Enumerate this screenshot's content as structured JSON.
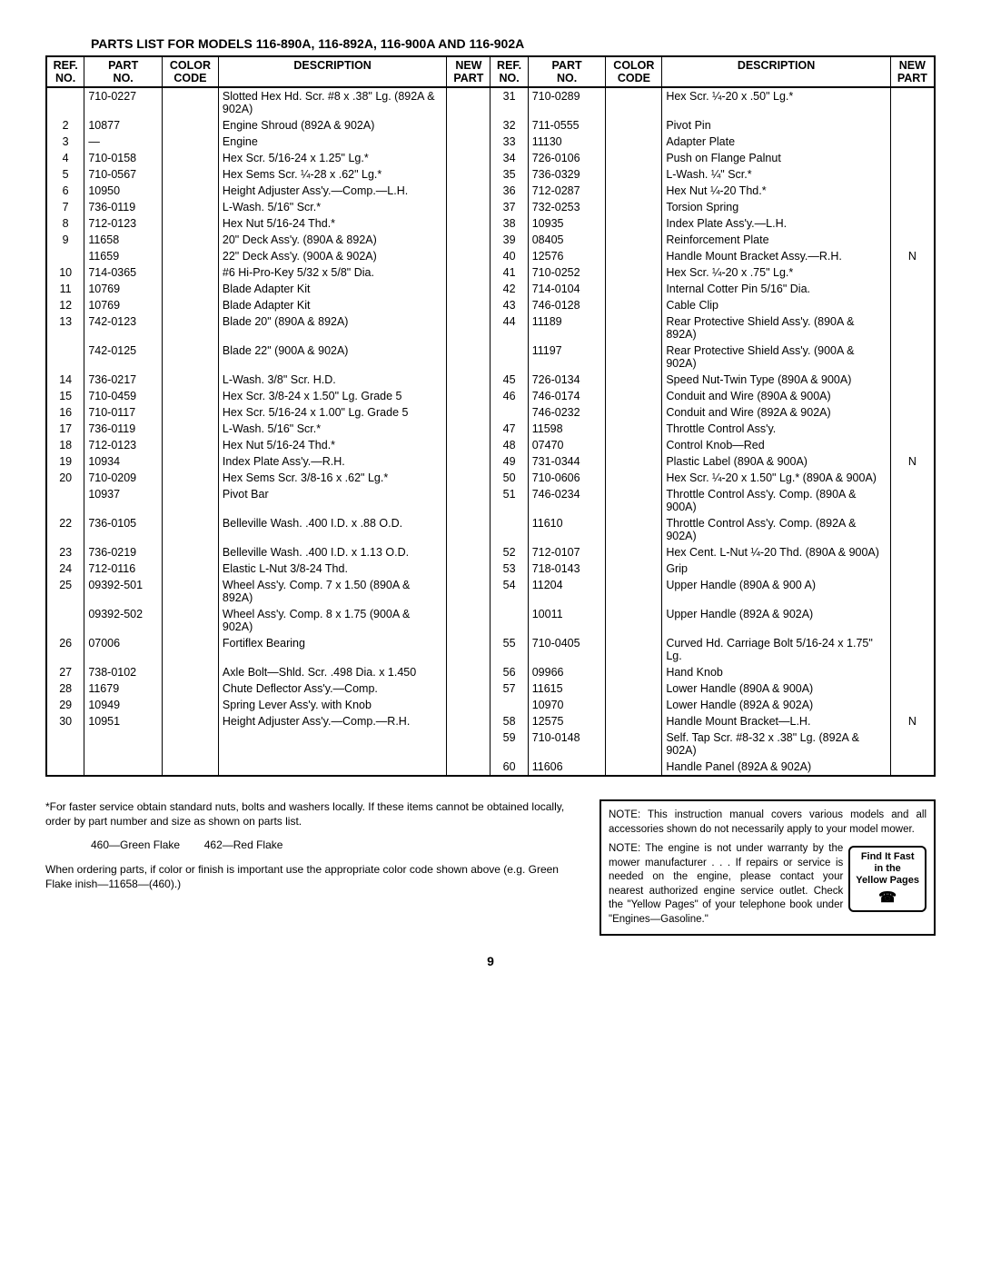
{
  "title": "PARTS LIST FOR MODELS 116-890A, 116-892A, 116-900A AND 116-902A",
  "headers": {
    "ref": "REF.\nNO.",
    "part": "PART\nNO.",
    "color": "COLOR\nCODE",
    "desc": "DESCRIPTION",
    "new": "NEW\nPART"
  },
  "left_rows": [
    {
      "ref": "",
      "part": "710-0227",
      "color": "",
      "desc": "Slotted Hex Hd. Scr. #8 x .38\" Lg. (892A & 902A)",
      "new": ""
    },
    {
      "ref": "2",
      "part": "10877",
      "color": "",
      "desc": "Engine Shroud (892A & 902A)",
      "new": ""
    },
    {
      "ref": "3",
      "part": "—",
      "color": "",
      "desc": "Engine",
      "new": ""
    },
    {
      "ref": "4",
      "part": "710-0158",
      "color": "",
      "desc": "Hex Scr. 5/16-24 x 1.25\" Lg.*",
      "new": ""
    },
    {
      "ref": "5",
      "part": "710-0567",
      "color": "",
      "desc": "Hex Sems Scr. ¼-28 x .62\" Lg.*",
      "new": ""
    },
    {
      "ref": "6",
      "part": "10950",
      "color": "",
      "desc": "Height Adjuster Ass'y.—Comp.—L.H.",
      "new": ""
    },
    {
      "ref": "7",
      "part": "736-0119",
      "color": "",
      "desc": "L-Wash. 5/16\" Scr.*",
      "new": ""
    },
    {
      "ref": "8",
      "part": "712-0123",
      "color": "",
      "desc": "Hex Nut 5/16-24 Thd.*",
      "new": ""
    },
    {
      "ref": "9",
      "part": "11658",
      "color": "",
      "desc": "20\" Deck Ass'y. (890A & 892A)",
      "new": ""
    },
    {
      "ref": "",
      "part": "11659",
      "color": "",
      "desc": "22\" Deck Ass'y. (900A & 902A)",
      "new": ""
    },
    {
      "ref": "10",
      "part": "714-0365",
      "color": "",
      "desc": "#6 Hi-Pro-Key 5/32 x 5/8\" Dia.",
      "new": ""
    },
    {
      "ref": "11",
      "part": "10769",
      "color": "",
      "desc": "Blade Adapter Kit",
      "new": ""
    },
    {
      "ref": "12",
      "part": "10769",
      "color": "",
      "desc": "Blade Adapter Kit",
      "new": ""
    },
    {
      "ref": "13",
      "part": "742-0123",
      "color": "",
      "desc": "Blade 20\" (890A & 892A)",
      "new": ""
    },
    {
      "ref": "",
      "part": "742-0125",
      "color": "",
      "desc": "Blade 22\" (900A & 902A)",
      "new": ""
    },
    {
      "ref": "14",
      "part": "736-0217",
      "color": "",
      "desc": "L-Wash. 3/8\" Scr. H.D.",
      "new": ""
    },
    {
      "ref": "15",
      "part": "710-0459",
      "color": "",
      "desc": "Hex Scr. 3/8-24 x 1.50\" Lg. Grade 5",
      "new": ""
    },
    {
      "ref": "16",
      "part": "710-0117",
      "color": "",
      "desc": "Hex Scr. 5/16-24 x 1.00\" Lg. Grade 5",
      "new": ""
    },
    {
      "ref": "17",
      "part": "736-0119",
      "color": "",
      "desc": "L-Wash. 5/16\" Scr.*",
      "new": ""
    },
    {
      "ref": "18",
      "part": "712-0123",
      "color": "",
      "desc": "Hex Nut 5/16-24 Thd.*",
      "new": ""
    },
    {
      "ref": "19",
      "part": "10934",
      "color": "",
      "desc": "Index Plate Ass'y.—R.H.",
      "new": ""
    },
    {
      "ref": "20",
      "part": "710-0209",
      "color": "",
      "desc": "Hex Sems Scr. 3/8-16 x .62\" Lg.*",
      "new": ""
    },
    {
      "ref": "",
      "part": "10937",
      "color": "",
      "desc": "Pivot Bar",
      "new": ""
    },
    {
      "ref": "22",
      "part": "736-0105",
      "color": "",
      "desc": "Belleville Wash. .400 I.D. x .88 O.D.",
      "new": ""
    },
    {
      "ref": "23",
      "part": "736-0219",
      "color": "",
      "desc": "Belleville Wash. .400 I.D. x 1.13 O.D.",
      "new": ""
    },
    {
      "ref": "24",
      "part": "712-0116",
      "color": "",
      "desc": "Elastic L-Nut 3/8-24 Thd.",
      "new": ""
    },
    {
      "ref": "25",
      "part": "09392-501",
      "color": "",
      "desc": "Wheel Ass'y. Comp. 7 x 1.50 (890A & 892A)",
      "new": ""
    },
    {
      "ref": "",
      "part": "09392-502",
      "color": "",
      "desc": "Wheel Ass'y. Comp. 8 x 1.75 (900A & 902A)",
      "new": ""
    },
    {
      "ref": "26",
      "part": "07006",
      "color": "",
      "desc": "Fortiflex Bearing",
      "new": ""
    },
    {
      "ref": "27",
      "part": "738-0102",
      "color": "",
      "desc": "Axle Bolt—Shld. Scr. .498 Dia. x 1.450",
      "new": ""
    },
    {
      "ref": "28",
      "part": "11679",
      "color": "",
      "desc": "Chute Deflector Ass'y.—Comp.",
      "new": ""
    },
    {
      "ref": "29",
      "part": "10949",
      "color": "",
      "desc": "Spring Lever Ass'y. with Knob",
      "new": ""
    },
    {
      "ref": "30",
      "part": "10951",
      "color": "",
      "desc": "Height Adjuster Ass'y.—Comp.—R.H.",
      "new": ""
    }
  ],
  "right_rows": [
    {
      "ref": "31",
      "part": "710-0289",
      "color": "",
      "desc": "Hex Scr. ¼-20 x .50\" Lg.*",
      "new": ""
    },
    {
      "ref": "32",
      "part": "711-0555",
      "color": "",
      "desc": "Pivot Pin",
      "new": ""
    },
    {
      "ref": "33",
      "part": "11130",
      "color": "",
      "desc": "Adapter Plate",
      "new": ""
    },
    {
      "ref": "34",
      "part": "726-0106",
      "color": "",
      "desc": "Push on Flange Palnut",
      "new": ""
    },
    {
      "ref": "35",
      "part": "736-0329",
      "color": "",
      "desc": "L-Wash. ¼\" Scr.*",
      "new": ""
    },
    {
      "ref": "36",
      "part": "712-0287",
      "color": "",
      "desc": "Hex Nut ¼-20 Thd.*",
      "new": ""
    },
    {
      "ref": "37",
      "part": "732-0253",
      "color": "",
      "desc": "Torsion Spring",
      "new": ""
    },
    {
      "ref": "38",
      "part": "10935",
      "color": "",
      "desc": "Index Plate Ass'y.—L.H.",
      "new": ""
    },
    {
      "ref": "39",
      "part": "08405",
      "color": "",
      "desc": "Reinforcement Plate",
      "new": ""
    },
    {
      "ref": "40",
      "part": "12576",
      "color": "",
      "desc": "Handle Mount Bracket Assy.—R.H.",
      "new": "N"
    },
    {
      "ref": "41",
      "part": "710-0252",
      "color": "",
      "desc": "Hex Scr. ¼-20 x .75\" Lg.*",
      "new": ""
    },
    {
      "ref": "42",
      "part": "714-0104",
      "color": "",
      "desc": "Internal Cotter Pin 5/16\" Dia.",
      "new": ""
    },
    {
      "ref": "43",
      "part": "746-0128",
      "color": "",
      "desc": "Cable Clip",
      "new": ""
    },
    {
      "ref": "44",
      "part": "11189",
      "color": "",
      "desc": "Rear Protective Shield Ass'y. (890A & 892A)",
      "new": ""
    },
    {
      "ref": "",
      "part": "11197",
      "color": "",
      "desc": "Rear Protective Shield Ass'y. (900A & 902A)",
      "new": ""
    },
    {
      "ref": "45",
      "part": "726-0134",
      "color": "",
      "desc": "Speed Nut-Twin Type (890A & 900A)",
      "new": ""
    },
    {
      "ref": "46",
      "part": "746-0174",
      "color": "",
      "desc": "Conduit and Wire (890A & 900A)",
      "new": ""
    },
    {
      "ref": "",
      "part": "746-0232",
      "color": "",
      "desc": "Conduit and Wire (892A & 902A)",
      "new": ""
    },
    {
      "ref": "47",
      "part": "11598",
      "color": "",
      "desc": "Throttle Control Ass'y.",
      "new": ""
    },
    {
      "ref": "48",
      "part": "07470",
      "color": "",
      "desc": "Control Knob—Red",
      "new": ""
    },
    {
      "ref": "49",
      "part": "731-0344",
      "color": "",
      "desc": "Plastic Label (890A & 900A)",
      "new": "N"
    },
    {
      "ref": "50",
      "part": "710-0606",
      "color": "",
      "desc": "Hex Scr. ¼-20 x 1.50\" Lg.* (890A & 900A)",
      "new": ""
    },
    {
      "ref": "51",
      "part": "746-0234",
      "color": "",
      "desc": "Throttle Control Ass'y. Comp. (890A & 900A)",
      "new": ""
    },
    {
      "ref": "",
      "part": "11610",
      "color": "",
      "desc": "Throttle Control Ass'y. Comp. (892A & 902A)",
      "new": ""
    },
    {
      "ref": "52",
      "part": "712-0107",
      "color": "",
      "desc": "Hex Cent. L-Nut ¼-20 Thd. (890A & 900A)",
      "new": ""
    },
    {
      "ref": "53",
      "part": "718-0143",
      "color": "",
      "desc": "Grip",
      "new": ""
    },
    {
      "ref": "54",
      "part": "11204",
      "color": "",
      "desc": "Upper Handle (890A & 900 A)",
      "new": ""
    },
    {
      "ref": "",
      "part": "10011",
      "color": "",
      "desc": "Upper Handle (892A & 902A)",
      "new": ""
    },
    {
      "ref": "55",
      "part": "710-0405",
      "color": "",
      "desc": "Curved Hd. Carriage Bolt 5/16-24 x 1.75\" Lg.",
      "new": ""
    },
    {
      "ref": "56",
      "part": "09966",
      "color": "",
      "desc": "Hand Knob",
      "new": ""
    },
    {
      "ref": "57",
      "part": "11615",
      "color": "",
      "desc": "Lower Handle (890A & 900A)",
      "new": ""
    },
    {
      "ref": "",
      "part": "10970",
      "color": "",
      "desc": "Lower Handle (892A & 902A)",
      "new": ""
    },
    {
      "ref": "58",
      "part": "12575",
      "color": "",
      "desc": "Handle Mount Bracket—L.H.",
      "new": "N"
    },
    {
      "ref": "59",
      "part": "710-0148",
      "color": "",
      "desc": "Self. Tap Scr. #8-32 x .38\" Lg. (892A & 902A)",
      "new": ""
    },
    {
      "ref": "60",
      "part": "11606",
      "color": "",
      "desc": "Handle Panel (892A & 902A)",
      "new": ""
    }
  ],
  "footnote1": "*For faster service obtain standard nuts, bolts and washers locally. If these items cannot be obtained locally, order by part number and size as shown on parts list.",
  "footnote2": "460—Green Flake        462—Red Flake",
  "footnote3": "When ordering parts, if color or finish is important use the appropriate color code shown above (e.g. Green Flake inish—11658—(460).)",
  "box_note1": "NOTE: This instruction manual covers various models and all accessories shown do not necessarily apply to your model mower.",
  "box_note2": "NOTE: The engine is not under warranty by the mower manufacturer . . . If repairs or service is needed on the engine, please contact your nearest authorized engine service outlet. Check the \"Yellow Pages\" of your telephone book under \"Engines—Gasoline.\"",
  "findit": {
    "l1": "Find It Fast",
    "l2": "in the",
    "l3": "Yellow Pages"
  },
  "page": "9"
}
